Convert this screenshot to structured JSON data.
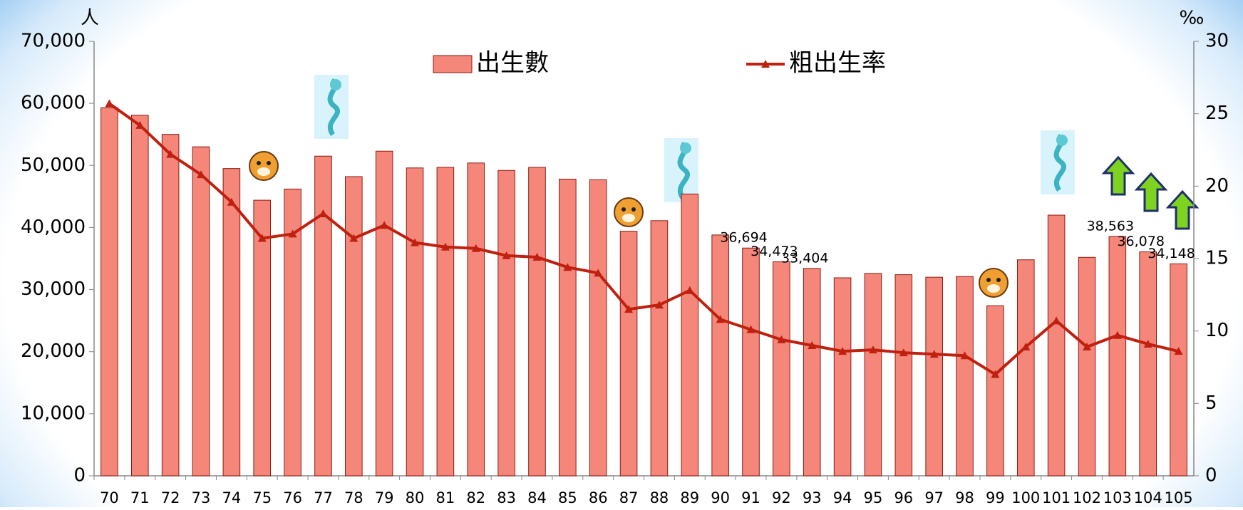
{
  "chart_data": {
    "type": "bar",
    "y_unit_label": "人",
    "y2_unit_label": "‰",
    "categories": [
      "70",
      "71",
      "72",
      "73",
      "74",
      "75",
      "76",
      "77",
      "78",
      "79",
      "80",
      "81",
      "82",
      "83",
      "84",
      "85",
      "86",
      "87",
      "88",
      "89",
      "90",
      "91",
      "92",
      "93",
      "94",
      "95",
      "96",
      "97",
      "98",
      "99",
      "100",
      "101",
      "102",
      "103",
      "104",
      "105"
    ],
    "series": [
      {
        "name": "出生數",
        "type": "bar",
        "color": "#f4877a",
        "values": [
          59300,
          58100,
          55000,
          53000,
          49500,
          44400,
          46200,
          51500,
          48200,
          52300,
          49600,
          49700,
          50400,
          49200,
          49700,
          47800,
          47700,
          39400,
          41100,
          45400,
          38800,
          36694,
          34473,
          33404,
          31900,
          32600,
          32400,
          32000,
          32100,
          27400,
          34800,
          42000,
          35200,
          38563,
          36078,
          34148
        ],
        "value_labels": [
          null,
          null,
          null,
          null,
          null,
          null,
          null,
          null,
          null,
          null,
          null,
          null,
          null,
          null,
          null,
          null,
          null,
          null,
          null,
          null,
          null,
          "36,694",
          "34,473",
          "33,404",
          null,
          null,
          null,
          null,
          null,
          null,
          null,
          null,
          null,
          "38,563",
          "36,078",
          "34,148"
        ]
      },
      {
        "name": "粗出生率",
        "type": "line",
        "axis": "y2",
        "color": "#c0200f",
        "values": [
          25.7,
          24.2,
          22.2,
          20.8,
          18.9,
          16.4,
          16.7,
          18.1,
          16.4,
          17.3,
          16.1,
          15.8,
          15.7,
          15.2,
          15.1,
          14.4,
          14.0,
          11.5,
          11.8,
          12.8,
          10.8,
          10.1,
          9.4,
          9.0,
          8.6,
          8.7,
          8.5,
          8.4,
          8.3,
          7.0,
          8.9,
          10.7,
          8.9,
          9.7,
          9.1,
          8.6
        ]
      }
    ],
    "ylim": [
      0,
      70000
    ],
    "yticks": [
      0,
      {
        "value": 10000,
        "label": "10,000"
      },
      {
        "value": 20000,
        "label": "20,000"
      },
      {
        "value": 30000,
        "label": "30,000"
      },
      {
        "value": 40000,
        "label": "40,000"
      },
      {
        "value": 50000,
        "label": "50,000"
      },
      {
        "value": 60000,
        "label": "60,000"
      },
      {
        "value": 70000,
        "label": "70,000"
      }
    ],
    "y2lim": [
      0,
      30
    ],
    "y2ticks": [
      0,
      5,
      10,
      15,
      20,
      25,
      30
    ],
    "grid": false,
    "legend": "top"
  }
}
